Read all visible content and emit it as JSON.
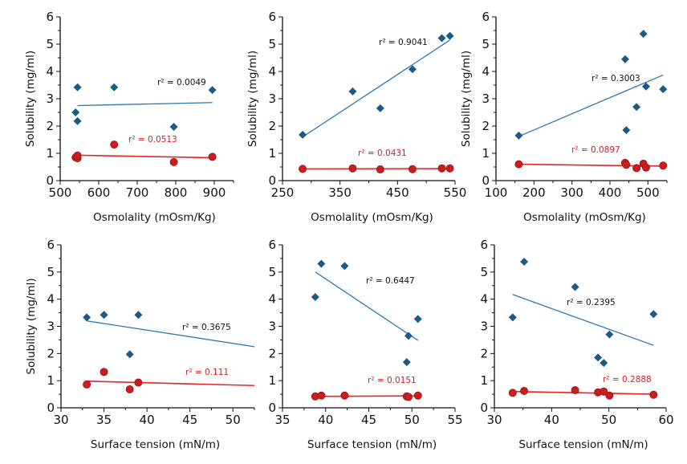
{
  "colors": {
    "series_a": "#1c5a86",
    "series_a_line": "#2b78b6",
    "series_b": "#c81e1e",
    "series_b_line": "#e02626",
    "r2_a_text": "#111111",
    "r2_b_text": "#d0202a"
  },
  "chart_data": [
    {
      "type": "scatter",
      "xlabel": "Osmolality  (mOsm/Kg)",
      "ylabel": "Solubility (mg/ml)",
      "xlim": [
        500,
        950
      ],
      "ylim": [
        0,
        6
      ],
      "xticks": [
        500,
        600,
        700,
        800,
        900
      ],
      "yticks": [
        0,
        1,
        2,
        3,
        4,
        5,
        6
      ],
      "series": [
        {
          "marker": "diamond",
          "x": [
            540,
            545,
            545,
            640,
            795,
            895
          ],
          "y": [
            2.5,
            3.42,
            2.18,
            3.42,
            1.97,
            3.32
          ],
          "trend": [
            [
              545,
              2.75
            ],
            [
              895,
              2.86
            ]
          ],
          "r2_label": "r² = 0.0049"
        },
        {
          "marker": "circle",
          "x": [
            540,
            545,
            545,
            640,
            795,
            895
          ],
          "y": [
            0.85,
            0.82,
            0.92,
            1.32,
            0.68,
            0.87
          ],
          "trend": [
            [
              545,
              0.93
            ],
            [
              895,
              0.84
            ]
          ],
          "r2_label": "r² = 0.0513"
        }
      ]
    },
    {
      "type": "scatter",
      "xlabel": "Osmolality  (mOsm/Kg)",
      "ylabel": "Solubility (mg/ml)",
      "xlim": [
        250,
        550
      ],
      "ylim": [
        0,
        6
      ],
      "xticks": [
        250,
        350,
        450,
        550
      ],
      "yticks": [
        0,
        1,
        2,
        3,
        4,
        5,
        6
      ],
      "series": [
        {
          "marker": "diamond",
          "x": [
            285,
            372,
            420,
            476,
            527,
            541
          ],
          "y": [
            1.68,
            3.27,
            2.65,
            4.08,
            5.22,
            5.3
          ],
          "trend": [
            [
              285,
              1.6
            ],
            [
              541,
              5.15
            ]
          ],
          "r2_label": "r² = 0.9041"
        },
        {
          "marker": "circle",
          "x": [
            285,
            372,
            420,
            476,
            527,
            541
          ],
          "y": [
            0.43,
            0.45,
            0.41,
            0.42,
            0.45,
            0.45
          ],
          "trend": [
            [
              285,
              0.43
            ],
            [
              541,
              0.44
            ]
          ],
          "r2_label": "r² = 0.0431"
        }
      ]
    },
    {
      "type": "scatter",
      "xlabel": "Osmolality  (mOsm/Kg)",
      "ylabel": "Solubility (mg/ml)",
      "xlim": [
        100,
        550
      ],
      "ylim": [
        0,
        6
      ],
      "xticks": [
        100,
        200,
        300,
        400,
        500
      ],
      "yticks": [
        0,
        1,
        2,
        3,
        4,
        5,
        6
      ],
      "series": [
        {
          "marker": "diamond",
          "x": [
            160,
            440,
            443,
            470,
            488,
            495,
            540
          ],
          "y": [
            1.65,
            4.45,
            1.85,
            2.7,
            5.38,
            3.45,
            3.35
          ],
          "trend": [
            [
              160,
              1.62
            ],
            [
              540,
              3.87
            ]
          ],
          "r2_label": "r² = 0.3003"
        },
        {
          "marker": "circle",
          "x": [
            160,
            440,
            443,
            470,
            488,
            495,
            540
          ],
          "y": [
            0.6,
            0.65,
            0.58,
            0.46,
            0.62,
            0.48,
            0.55
          ],
          "trend": [
            [
              160,
              0.6
            ],
            [
              540,
              0.53
            ]
          ],
          "r2_label": "r² = 0.0897"
        }
      ]
    },
    {
      "type": "scatter",
      "xlabel": "Surface tension  (mN/m)",
      "ylabel": "Solubility (mg/ml)",
      "xlim": [
        30,
        52.5
      ],
      "ylim": [
        0,
        6
      ],
      "xticks": [
        30,
        35,
        40,
        45,
        50
      ],
      "yticks": [
        0,
        1,
        2,
        3,
        4,
        5,
        6
      ],
      "series": [
        {
          "marker": "diamond",
          "x": [
            33,
            35,
            38,
            39
          ],
          "y": [
            3.33,
            3.42,
            1.97,
            3.42
          ],
          "trend": [
            [
              33,
              3.2
            ],
            [
              52.5,
              2.25
            ]
          ],
          "r2_label": "r² = 0.3675"
        },
        {
          "marker": "circle",
          "x": [
            33,
            35,
            38,
            39
          ],
          "y": [
            0.86,
            1.32,
            0.68,
            0.93
          ],
          "trend": [
            [
              33,
              0.98
            ],
            [
              52.5,
              0.82
            ]
          ],
          "r2_label": "r² = 0.111"
        }
      ]
    },
    {
      "type": "scatter",
      "xlabel": "Surface tension  (mN/m)",
      "ylabel": "",
      "xlim": [
        35,
        55
      ],
      "ylim": [
        0,
        6
      ],
      "xticks": [
        35,
        40,
        45,
        50,
        55
      ],
      "yticks": [
        0,
        1,
        2,
        3,
        4,
        5,
        6
      ],
      "series": [
        {
          "marker": "diamond",
          "x": [
            38.8,
            39.5,
            42.2,
            49.4,
            49.6,
            50.7
          ],
          "y": [
            4.08,
            5.3,
            5.22,
            1.68,
            2.65,
            3.27
          ],
          "trend": [
            [
              38.8,
              5.0
            ],
            [
              50.7,
              2.48
            ]
          ],
          "r2_label": "r² = 0.6447"
        },
        {
          "marker": "circle",
          "x": [
            38.8,
            39.5,
            42.2,
            49.4,
            49.6,
            50.7
          ],
          "y": [
            0.42,
            0.45,
            0.45,
            0.42,
            0.4,
            0.45
          ],
          "trend": [
            [
              38.8,
              0.42
            ],
            [
              50.7,
              0.44
            ]
          ],
          "r2_label": "r² = 0.0151"
        }
      ]
    },
    {
      "type": "scatter",
      "xlabel": "Surface tension  (mN/m)",
      "ylabel": "",
      "xlim": [
        30,
        60
      ],
      "ylim": [
        0,
        6
      ],
      "xticks": [
        30,
        40,
        50,
        60
      ],
      "yticks": [
        0,
        1,
        2,
        3,
        4,
        5,
        6
      ],
      "series": [
        {
          "marker": "diamond",
          "x": [
            33.2,
            35.2,
            44.1,
            48.1,
            49.1,
            50.1,
            57.8
          ],
          "y": [
            3.33,
            5.38,
            4.45,
            1.85,
            1.65,
            2.7,
            3.45
          ],
          "trend": [
            [
              33.2,
              4.17
            ],
            [
              57.8,
              2.3
            ]
          ],
          "r2_label": "r² = 0.2395"
        },
        {
          "marker": "circle",
          "x": [
            33.2,
            35.2,
            44.1,
            48.1,
            49.1,
            50.1,
            57.8
          ],
          "y": [
            0.55,
            0.62,
            0.65,
            0.57,
            0.6,
            0.45,
            0.48
          ],
          "trend": [
            [
              33.2,
              0.6
            ],
            [
              57.8,
              0.5
            ]
          ],
          "r2_label": "r² = 0.2888"
        }
      ]
    }
  ]
}
